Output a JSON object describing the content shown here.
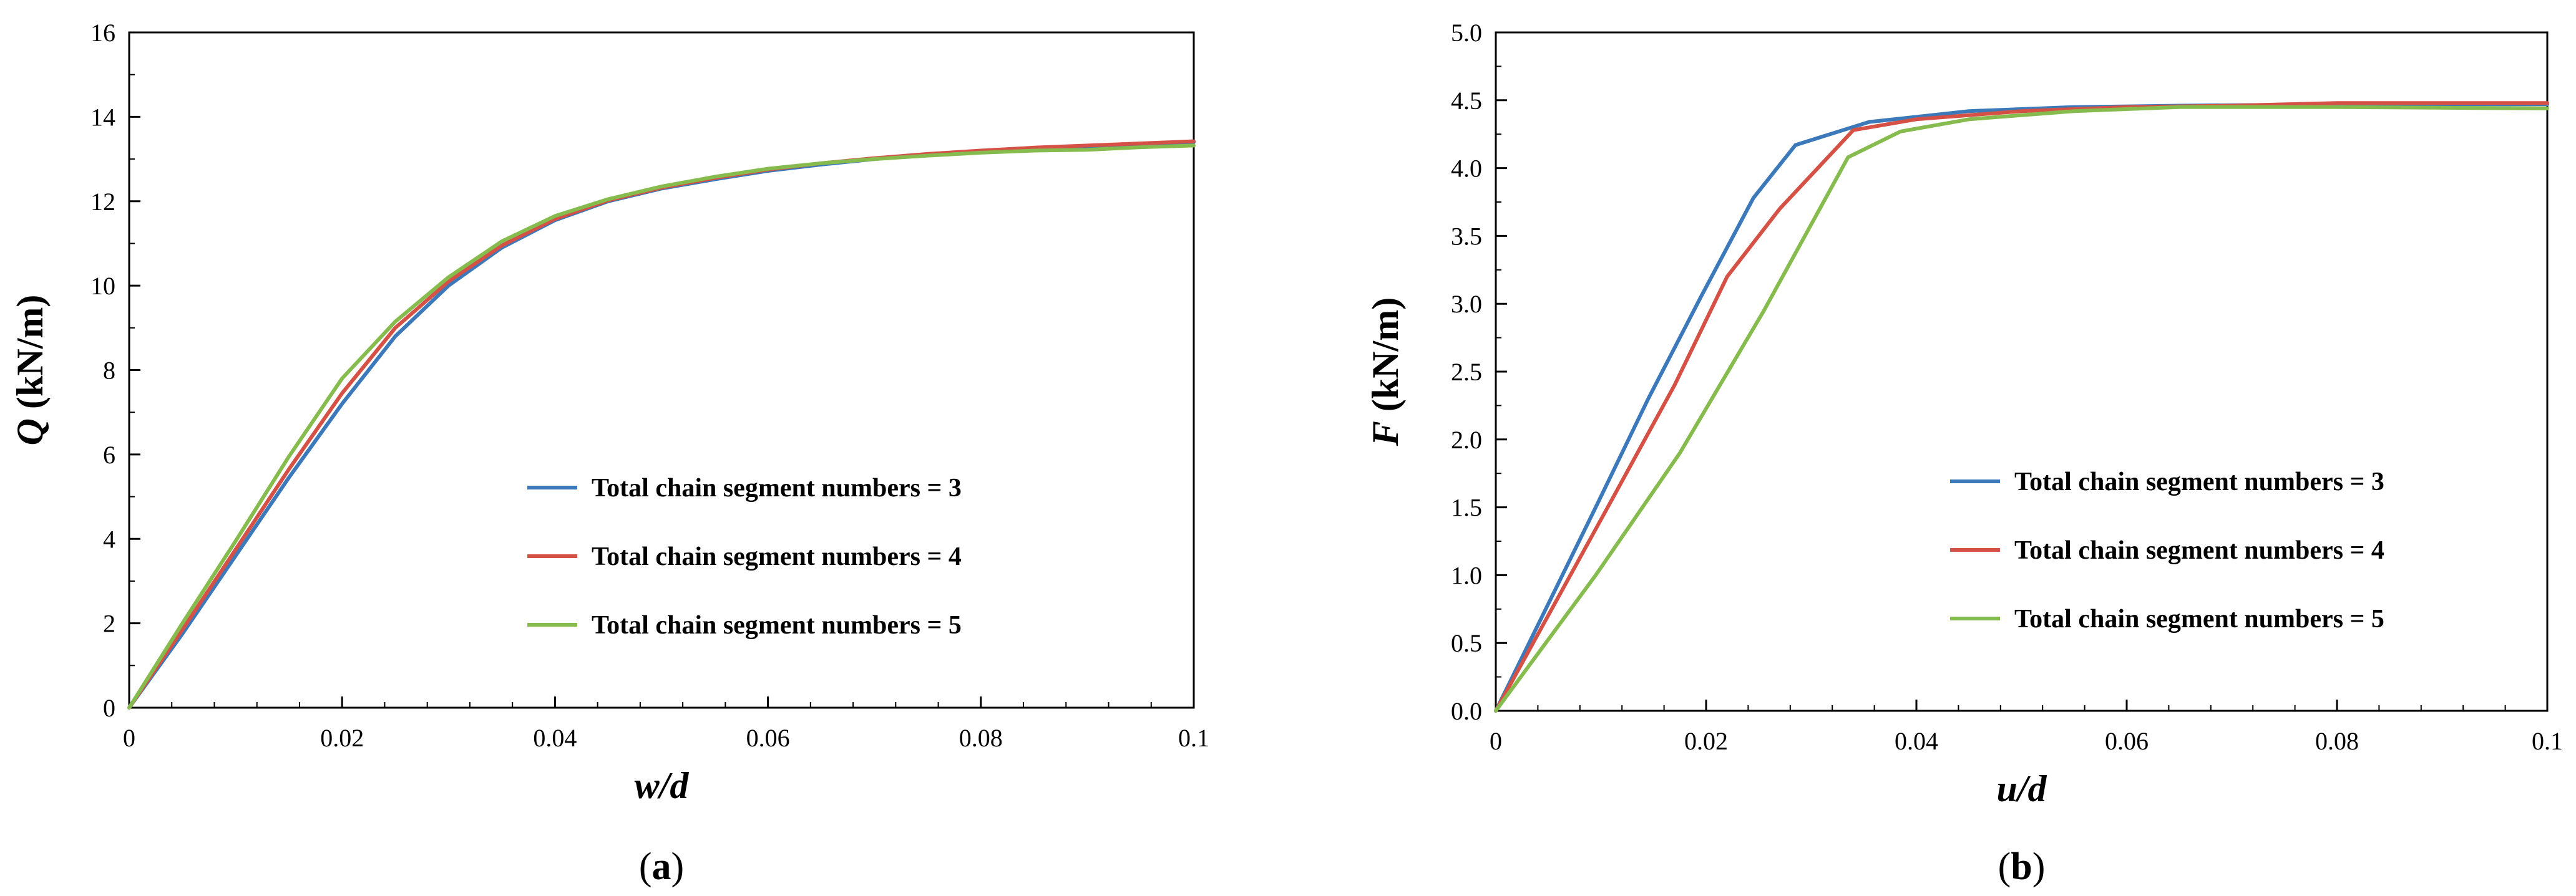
{
  "chart_data": [
    {
      "type": "line",
      "panel_label": "a",
      "xlabel": {
        "var": "w",
        "rest": "/d"
      },
      "ylabel": {
        "var": "Q",
        "rest": " (kN/m)"
      },
      "xlim": [
        0,
        0.1
      ],
      "ylim": [
        0,
        16
      ],
      "xticks": [
        0,
        0.02,
        0.04,
        0.06,
        0.08,
        0.1
      ],
      "xtick_labels": [
        "0",
        "0.02",
        "0.04",
        "0.06",
        "0.08",
        "0.1"
      ],
      "yticks": [
        0,
        2,
        4,
        6,
        8,
        10,
        12,
        14,
        16
      ],
      "ytick_labels": [
        "0",
        "2",
        "4",
        "6",
        "8",
        "10",
        "12",
        "14",
        "16"
      ],
      "grid": false,
      "legend_position": "lower-right",
      "x": [
        0,
        0.005,
        0.01,
        0.015,
        0.02,
        0.025,
        0.03,
        0.035,
        0.04,
        0.045,
        0.05,
        0.055,
        0.06,
        0.065,
        0.07,
        0.075,
        0.08,
        0.085,
        0.09,
        0.095,
        0.1
      ],
      "series": [
        {
          "name": "Total chain segment numbers = 3",
          "color": "#3b79bb",
          "values": [
            0,
            1.75,
            3.6,
            5.45,
            7.2,
            8.8,
            10.0,
            10.9,
            11.55,
            12.0,
            12.3,
            12.52,
            12.72,
            12.87,
            13.0,
            13.1,
            13.18,
            13.25,
            13.3,
            13.35,
            13.4
          ]
        },
        {
          "name": "Total chain segment numbers = 4",
          "color": "#d55045",
          "values": [
            0,
            1.85,
            3.75,
            5.65,
            7.45,
            9.0,
            10.1,
            10.95,
            11.58,
            12.02,
            12.32,
            12.55,
            12.75,
            12.9,
            13.02,
            13.12,
            13.2,
            13.27,
            13.32,
            13.37,
            13.42
          ]
        },
        {
          "name": "Total chain segment numbers = 5",
          "color": "#86bc4e",
          "values": [
            0,
            2.0,
            3.95,
            5.95,
            7.8,
            9.15,
            10.2,
            11.05,
            11.65,
            12.05,
            12.35,
            12.58,
            12.77,
            12.9,
            13.0,
            13.08,
            13.15,
            13.2,
            13.22,
            13.28,
            13.32
          ]
        }
      ]
    },
    {
      "type": "line",
      "panel_label": "b",
      "xlabel": {
        "var": "u",
        "rest": "/d"
      },
      "ylabel": {
        "var": "F",
        "rest": " (kN/m)"
      },
      "xlim": [
        0,
        0.1
      ],
      "ylim": [
        0,
        5.0
      ],
      "xticks": [
        0,
        0.02,
        0.04,
        0.06,
        0.08,
        0.1
      ],
      "xtick_labels": [
        "0",
        "0.02",
        "0.04",
        "0.06",
        "0.08",
        "0.1"
      ],
      "yticks": [
        0,
        0.5,
        1.0,
        1.5,
        2.0,
        2.5,
        3.0,
        3.5,
        4.0,
        4.5,
        5.0
      ],
      "ytick_labels": [
        "0.0",
        "0.5",
        "1.0",
        "1.5",
        "2.0",
        "2.5",
        "3.0",
        "3.5",
        "4.0",
        "4.5",
        "5.0"
      ],
      "grid": false,
      "legend_position": "lower-right",
      "series": [
        {
          "name": "Total chain segment numbers = 3",
          "color": "#3b79bb",
          "x": [
            0,
            0.0095,
            0.0145,
            0.0195,
            0.0245,
            0.0285,
            0.0355,
            0.045,
            0.055,
            0.065,
            0.08,
            0.1
          ],
          "values": [
            0,
            1.5,
            2.3,
            3.05,
            3.78,
            4.17,
            4.34,
            4.42,
            4.45,
            4.46,
            4.47,
            4.47
          ]
        },
        {
          "name": "Total chain segment numbers = 4",
          "color": "#d55045",
          "x": [
            0,
            0.011,
            0.017,
            0.022,
            0.027,
            0.034,
            0.04,
            0.05,
            0.06,
            0.07,
            0.08,
            0.1
          ],
          "values": [
            0,
            1.55,
            2.4,
            3.2,
            3.7,
            4.28,
            4.36,
            4.42,
            4.45,
            4.46,
            4.48,
            4.48
          ]
        },
        {
          "name": "Total chain segment numbers = 5",
          "color": "#86bc4e",
          "x": [
            0,
            0.0095,
            0.0175,
            0.0255,
            0.0335,
            0.0385,
            0.045,
            0.055,
            0.065,
            0.08,
            0.1
          ],
          "values": [
            0,
            1.0,
            1.9,
            2.95,
            4.08,
            4.27,
            4.36,
            4.42,
            4.45,
            4.45,
            4.44
          ]
        }
      ]
    }
  ]
}
